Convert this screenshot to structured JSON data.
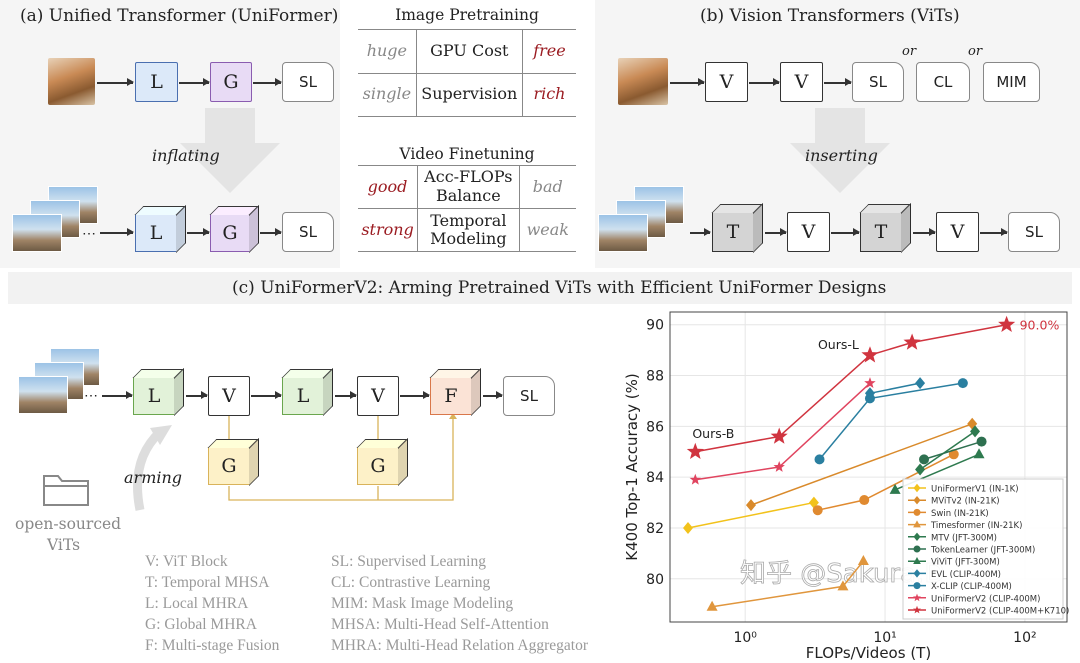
{
  "panel_a": {
    "title": "(a) Unified Transformer (UniFormer)",
    "top_blocks": [
      "L",
      "G",
      "SL"
    ],
    "bottom_blocks": [
      "L",
      "G",
      "SL"
    ],
    "arrow_label": "inflating",
    "dots": "⋯"
  },
  "panel_mid": {
    "image_heading": "Image Pretraining",
    "video_heading": "Video Finetuning",
    "image_rows": [
      {
        "left": "huge",
        "center": "GPU Cost",
        "right": "free"
      },
      {
        "left": "single",
        "center": "Supervision",
        "right": "rich"
      }
    ],
    "video_rows": [
      {
        "left": "good",
        "center": "Acc-FLOPs Balance",
        "right": "bad"
      },
      {
        "left": "strong",
        "center": "Temporal Modeling",
        "right": "weak"
      }
    ]
  },
  "panel_b": {
    "title": "(b) Vision Transformers (ViTs)",
    "top_blocks": [
      "V",
      "V",
      "SL",
      "CL",
      "MIM"
    ],
    "or_label": "or",
    "bottom_blocks": [
      "T",
      "V",
      "T",
      "V",
      "SL"
    ],
    "arrow_label": "inserting"
  },
  "panel_c": {
    "title": "(c) UniFormerV2: Arming Pretrained ViTs with Efficient UniFormer Designs",
    "main_blocks": [
      "L",
      "V",
      "L",
      "V",
      "F",
      "SL"
    ],
    "global_blocks": [
      "G",
      "G"
    ],
    "arming_label": "arming",
    "source_label_1": "open-sourced",
    "source_label_2": "ViTs",
    "legend_left": [
      "V: ViT Block",
      "T: Temporal MHSA",
      "L: Local MHRA",
      "G: Global MHRA",
      "F: Multi-stage Fusion"
    ],
    "legend_right": [
      "SL: Supervised Learning",
      "CL: Contrastive Learning",
      "MIM: Mask Image Modeling",
      "MHSA: Multi-Head Self-Attention",
      "MHRA: Multi-Head Relation Aggregator"
    ]
  },
  "colors": {
    "L": "#dce9f9",
    "G": "#e8dbf5",
    "Lgreen": "#e2f2d9",
    "Gyellow": "#fdf1c8",
    "F": "#fbe3d6",
    "T": "#d4d4d4"
  },
  "watermark": "知乎 @Sakura.D",
  "chart_data": {
    "type": "line",
    "xscale": "log",
    "xlabel": "FLOPs/Videos (T)",
    "ylabel": "K400 Top-1 Accuracy (%)",
    "xlim": [
      0.29,
      200
    ],
    "ylim": [
      78.3,
      90.5
    ],
    "xticks": [
      1,
      10,
      100
    ],
    "xtick_labels": [
      "10⁰",
      "10¹",
      "10²"
    ],
    "yticks": [
      80,
      82,
      84,
      86,
      88,
      90
    ],
    "grid": true,
    "legend_position": "lower-right",
    "annotations": [
      {
        "text": "Ours-B",
        "x": 0.44,
        "y": 85.0
      },
      {
        "text": "Ours-L",
        "x": 7.8,
        "y": 88.8
      },
      {
        "text": "90.0%",
        "x": 74,
        "y": 90.0
      }
    ],
    "series": [
      {
        "name": "UniFormerV1 (IN-1K)",
        "color": "#f2c21b",
        "marker": "diamond",
        "x": [
          0.39,
          3.1
        ],
        "y": [
          82.0,
          83.0
        ]
      },
      {
        "name": "MViTv2 (IN-21K)",
        "color": "#d98a2b",
        "marker": "diamond",
        "x": [
          1.1,
          42
        ],
        "y": [
          82.9,
          86.1
        ]
      },
      {
        "name": "Swin (IN-21K)",
        "color": "#e08a30",
        "marker": "circle",
        "x": [
          3.3,
          7.1,
          31
        ],
        "y": [
          82.7,
          83.1,
          84.9
        ]
      },
      {
        "name": "Timesformer (IN-21K)",
        "color": "#e0963d",
        "marker": "triangle",
        "x": [
          0.58,
          5.0,
          7.0
        ],
        "y": [
          78.9,
          79.7,
          80.7
        ]
      },
      {
        "name": "MTV (JFT-300M)",
        "color": "#2e7a4f",
        "marker": "diamond",
        "x": [
          17.8,
          44
        ],
        "y": [
          84.3,
          85.8
        ]
      },
      {
        "name": "TokenLearner (JFT-300M)",
        "color": "#2e7050",
        "marker": "circle",
        "x": [
          19,
          49
        ],
        "y": [
          84.7,
          85.4
        ]
      },
      {
        "name": "ViViT (JFT-300M)",
        "color": "#2e7a4f",
        "marker": "triangle",
        "x": [
          11.8,
          47
        ],
        "y": [
          83.5,
          84.9
        ]
      },
      {
        "name": "EVL (CLIP-400M)",
        "color": "#2a7fa0",
        "marker": "diamond",
        "x": [
          7.8,
          17.8
        ],
        "y": [
          87.3,
          87.7
        ]
      },
      {
        "name": "X-CLIP (CLIP-400M)",
        "color": "#2a7fa0",
        "marker": "circle",
        "x": [
          3.4,
          7.8,
          36
        ],
        "y": [
          84.7,
          87.1,
          87.7
        ]
      },
      {
        "name": "UniFormerV2 (CLIP-400M)",
        "color": "#e0445f",
        "marker": "star",
        "x": [
          0.44,
          1.75,
          7.8
        ],
        "y": [
          83.9,
          84.4,
          87.7
        ]
      },
      {
        "name": "UniFormerV2 (CLIP-400M+K710)",
        "color": "#d0343f",
        "marker": "bigstar",
        "x": [
          0.44,
          1.75,
          7.8,
          15.6,
          74
        ],
        "y": [
          85.0,
          85.6,
          88.8,
          89.3,
          90.0
        ]
      }
    ]
  }
}
